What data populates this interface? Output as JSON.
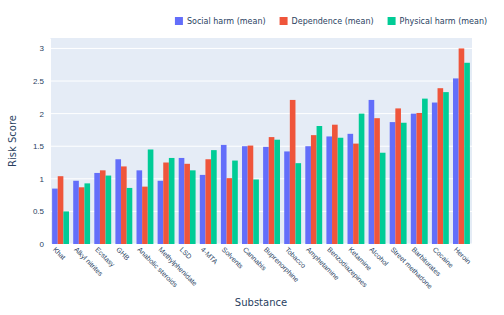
{
  "chart_data": {
    "type": "bar",
    "x_label": "Substance",
    "y_label": "Risk Score",
    "categories": [
      "Khat",
      "Alkyl nitrites",
      "Ecstasy",
      "GHB",
      "Anabolic steroids",
      "Methylphenidate",
      "LSD",
      "4-MTA",
      "Solvents",
      "Cannabis",
      "Buprenorphine",
      "Tobacco",
      "Amphetamine",
      "Benzodiazepines",
      "Ketamine",
      "Alcohol",
      "Street methadone",
      "Barbiturates",
      "Cocaine",
      "Heroin"
    ],
    "series": [
      {
        "name": "Social harm (mean)",
        "color": "#636efa",
        "values": [
          0.85,
          0.97,
          1.09,
          1.3,
          1.13,
          0.97,
          1.32,
          1.06,
          1.52,
          1.5,
          1.49,
          1.42,
          1.5,
          1.65,
          1.69,
          2.21,
          1.87,
          2.0,
          2.17,
          2.54
        ]
      },
      {
        "name": "Dependence (mean)",
        "color": "#ef553b",
        "values": [
          1.04,
          0.87,
          1.13,
          1.19,
          0.88,
          1.25,
          1.23,
          1.3,
          1.01,
          1.51,
          1.64,
          2.21,
          1.67,
          1.83,
          1.54,
          1.93,
          2.08,
          2.01,
          2.39,
          3.0
        ]
      },
      {
        "name": "Physical harm (mean)",
        "color": "#00cc96",
        "values": [
          0.5,
          0.93,
          1.05,
          0.86,
          1.45,
          1.32,
          1.13,
          1.44,
          1.28,
          0.99,
          1.6,
          1.24,
          1.81,
          1.63,
          2.0,
          1.4,
          1.86,
          2.23,
          2.33,
          2.78
        ]
      }
    ],
    "ylim": [
      0,
      3.16
    ],
    "yticks": [
      0,
      0.5,
      1,
      1.5,
      2,
      2.5,
      3
    ],
    "grid": true,
    "legend": "top"
  }
}
